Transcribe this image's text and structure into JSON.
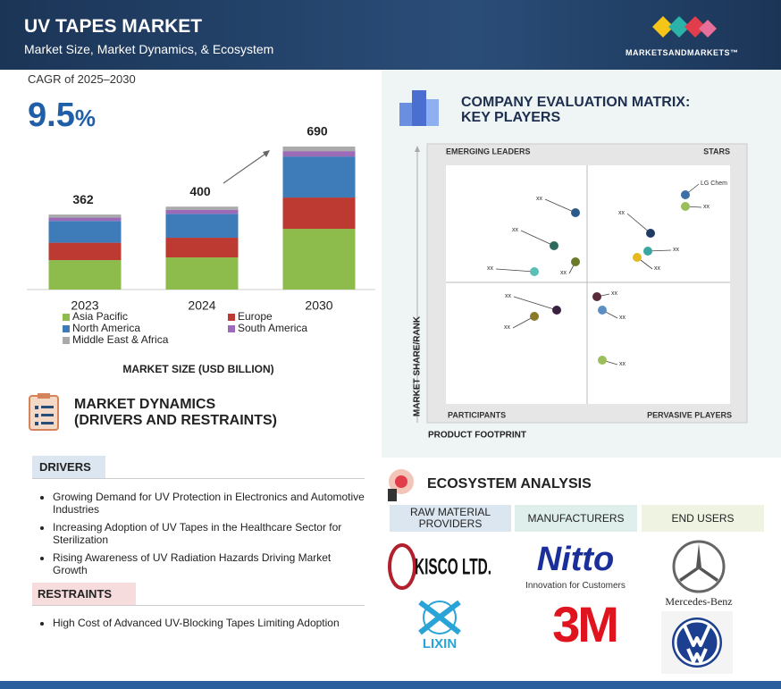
{
  "header": {
    "title": "UV TAPES MARKET",
    "subtitle": "Market Size, Market Dynamics, & Ecosystem",
    "brand": "MARKETSANDMARKETS™"
  },
  "cagr": {
    "label": "CAGR of 2025–2030",
    "value": "9.5",
    "unit": "%"
  },
  "chart_data": {
    "type": "bar",
    "stacked": true,
    "categories": [
      "2023",
      "2024",
      "2030"
    ],
    "totals": [
      362,
      400,
      690
    ],
    "series": [
      {
        "name": "Asia Pacific",
        "color": "#8dbb4c",
        "values": [
          142,
          155,
          293
        ]
      },
      {
        "name": "Europe",
        "color": "#bd3a33",
        "values": [
          84,
          95,
          151
        ]
      },
      {
        "name": "North America",
        "color": "#3d7bb9",
        "values": [
          105,
          115,
          198
        ]
      },
      {
        "name": "South America",
        "color": "#9b6bb7",
        "values": [
          16,
          20,
          26
        ]
      },
      {
        "name": "Middle East & Africa",
        "color": "#aaaaaa",
        "values": [
          15,
          15,
          22
        ]
      }
    ],
    "x_label": "MARKET SIZE (USD BILLION)"
  },
  "dynamics": {
    "title": [
      "MARKET DYNAMICS",
      "(DRIVERS AND RESTRAINTS)"
    ],
    "drivers": {
      "heading": "DRIVERS",
      "items": [
        "Growing Demand for UV Protection in Electronics and Automotive Industries",
        "Increasing Adoption of UV Tapes in the Healthcare Sector for Sterilization",
        "Rising Awareness of UV Radiation Hazards Driving Market Growth"
      ]
    },
    "restraints": {
      "heading": "RESTRAINTS",
      "items": [
        "High Cost of Advanced UV-Blocking Tapes Limiting Adoption"
      ]
    }
  },
  "matrix": {
    "title": [
      "COMPANY EVALUATION MATRIX:",
      "KEY PLAYERS"
    ],
    "quadrants": [
      "EMERGING LEADERS",
      "STARS",
      "PARTICIPANTS",
      "PERVASIVE PLAYERS"
    ],
    "x_label": "PRODUCT FOOTPRINT",
    "y_label": "MARKET SHARE/RANK",
    "nodes": [
      {
        "label": "xx"
      },
      {
        "label": "xx"
      },
      {
        "label": "xx"
      },
      {
        "label": "xx"
      },
      {
        "label": "LG Chem"
      },
      {
        "label": "xx"
      },
      {
        "label": "xx"
      },
      {
        "label": "xx"
      },
      {
        "label": "xx"
      },
      {
        "label": "xx"
      },
      {
        "label": "xx"
      },
      {
        "label": "xx"
      },
      {
        "label": "xx"
      },
      {
        "label": "xx"
      }
    ]
  },
  "ecosystem": {
    "title": "ECOSYSTEM ANALYSIS",
    "columns": [
      "RAW MATERIAL PROVIDERS",
      "MANUFACTURERS",
      "END USERS"
    ],
    "logos": {
      "kisco": "KISCO LTD.",
      "nitto": "Nitto",
      "nitto_tagline": "Innovation for Customers",
      "mercedes": "Mercedes-Benz",
      "lixin": "LIXIN",
      "threem": "3M"
    }
  }
}
